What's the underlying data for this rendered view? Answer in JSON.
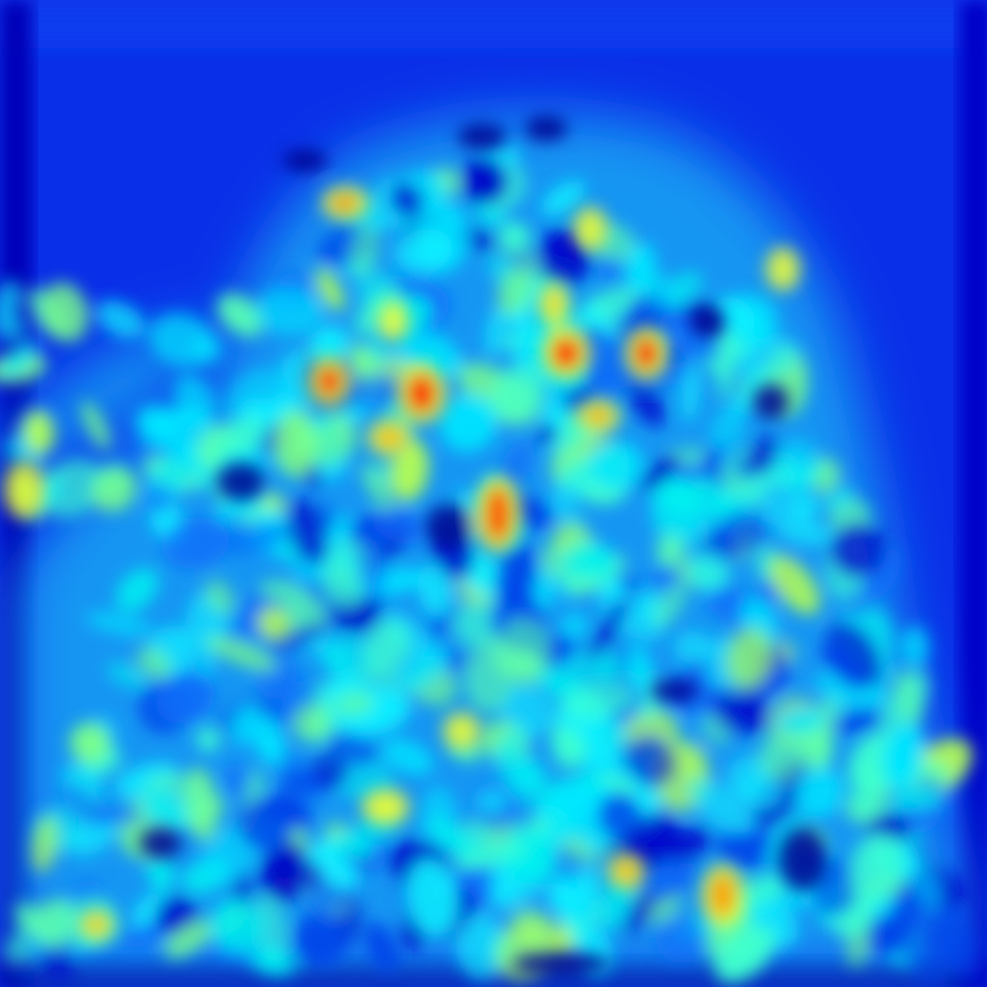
{
  "image": {
    "kind": "saliency heatmap",
    "colormap": "jet",
    "colormap_stops": [
      "#00007f",
      "#0000ff",
      "#007fff",
      "#00ffff",
      "#7fff7f",
      "#ffff00",
      "#ff7f00",
      "#ff0000",
      "#7f0000"
    ],
    "background_color": "#0a28e6",
    "grid_on": false,
    "legend": "none"
  }
}
